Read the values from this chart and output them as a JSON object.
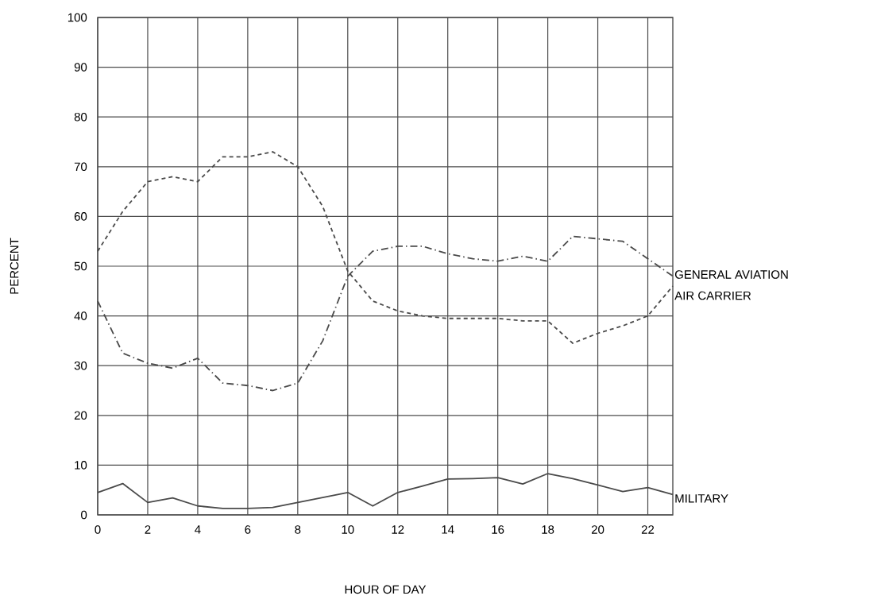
{
  "chart_data": {
    "type": "line",
    "xlabel": "HOUR OF DAY",
    "ylabel": "PERCENT",
    "x": [
      0,
      1,
      2,
      3,
      4,
      5,
      6,
      7,
      8,
      9,
      10,
      11,
      12,
      13,
      14,
      15,
      16,
      17,
      18,
      19,
      20,
      21,
      22,
      23
    ],
    "xlim": [
      0,
      23
    ],
    "xticks": [
      0,
      2,
      4,
      6,
      8,
      10,
      12,
      14,
      16,
      18,
      20,
      22
    ],
    "ylim": [
      0,
      100
    ],
    "yticks": [
      0,
      10,
      20,
      30,
      40,
      50,
      60,
      70,
      80,
      90,
      100
    ],
    "grid": true,
    "marker": "none",
    "series": [
      {
        "name": "GENERAL AVIATION",
        "color": "#4a4a4a",
        "line_style": "dashdot",
        "values": [
          43,
          32.5,
          30.5,
          29.5,
          31.5,
          26.5,
          26,
          25,
          26.5,
          35,
          48,
          53,
          54,
          54,
          52.5,
          51.5,
          51,
          52,
          51,
          56,
          55.5,
          55,
          51.5,
          48
        ]
      },
      {
        "name": "AIR CARRIER",
        "color": "#4a4a4a",
        "line_style": "dashed",
        "values": [
          53,
          61,
          67,
          68,
          67,
          72,
          72,
          73,
          70,
          62,
          49,
          43,
          41,
          40,
          39.5,
          39.5,
          39.5,
          39,
          39,
          34.5,
          36.5,
          38,
          40,
          46
        ]
      },
      {
        "name": "MILITARY",
        "color": "#4a4a4a",
        "line_style": "solid",
        "values": [
          4.5,
          6.3,
          2.5,
          3.4,
          1.8,
          1.3,
          1.3,
          1.5,
          2.5,
          3.5,
          4.5,
          1.8,
          4.5,
          5.8,
          7.2,
          7.3,
          7.5,
          6.2,
          8.3,
          7.3,
          6,
          4.7,
          5.5,
          4.1
        ]
      }
    ]
  }
}
